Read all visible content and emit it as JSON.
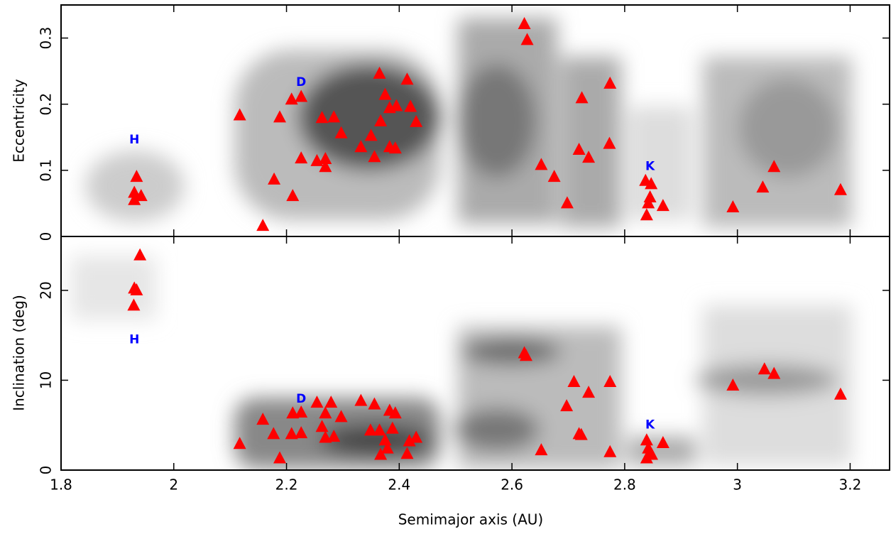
{
  "chart_data": [
    {
      "type": "scatter",
      "y_label": "Eccentricity",
      "xlim": [
        1.8,
        3.27
      ],
      "ylim": [
        0,
        0.35
      ],
      "xticks": [
        1.8,
        2,
        2.2,
        2.4,
        2.6,
        2.8,
        3,
        3.2
      ],
      "yticks": [
        0,
        0.1,
        0.2,
        0.3
      ],
      "series": [
        {
          "color": "#ff0000",
          "x": [
            1.934,
            1.93,
            1.942,
            1.93,
            2.117,
            2.158,
            2.178,
            2.188,
            2.211,
            2.209,
            2.226,
            2.226,
            2.254,
            2.263,
            2.269,
            2.269,
            2.284,
            2.297,
            2.332,
            2.35,
            2.356,
            2.365,
            2.367,
            2.375,
            2.383,
            2.383,
            2.393,
            2.395,
            2.414,
            2.42,
            2.43,
            2.622,
            2.627,
            2.652,
            2.724,
            2.719,
            2.736,
            2.774,
            2.773,
            2.675,
            2.698,
            2.837,
            2.847,
            2.845,
            2.842,
            2.868,
            2.839,
            2.992,
            3.045,
            3.065,
            3.183
          ],
          "values": [
            0.09,
            0.066,
            0.061,
            0.055,
            0.183,
            0.016,
            0.086,
            0.18,
            0.061,
            0.207,
            0.211,
            0.118,
            0.114,
            0.179,
            0.117,
            0.105,
            0.18,
            0.156,
            0.135,
            0.152,
            0.12,
            0.246,
            0.174,
            0.214,
            0.135,
            0.194,
            0.133,
            0.197,
            0.237,
            0.196,
            0.173,
            0.321,
            0.297,
            0.108,
            0.209,
            0.131,
            0.119,
            0.231,
            0.14,
            0.09,
            0.05,
            0.084,
            0.079,
            0.059,
            0.05,
            0.046,
            0.032,
            0.044,
            0.074,
            0.105,
            0.07
          ]
        }
      ],
      "annotations": [
        {
          "text": "H",
          "x": 1.93,
          "y": 0.146
        },
        {
          "text": "D",
          "x": 2.226,
          "y": 0.233
        },
        {
          "text": "K",
          "x": 2.845,
          "y": 0.106
        }
      ]
    },
    {
      "type": "scatter",
      "x_label": "Semimajor axis (AU)",
      "y_label": "Inclination (deg)",
      "xlim": [
        1.8,
        3.27
      ],
      "ylim": [
        0,
        26
      ],
      "xticks": [
        1.8,
        2,
        2.2,
        2.4,
        2.6,
        2.8,
        3,
        3.2
      ],
      "yticks": [
        0,
        10,
        20
      ],
      "series": [
        {
          "color": "#ff0000",
          "x": [
            1.94,
            1.93,
            1.934,
            1.929,
            2.117,
            2.158,
            2.177,
            2.188,
            2.211,
            2.209,
            2.226,
            2.226,
            2.254,
            2.263,
            2.269,
            2.269,
            2.279,
            2.284,
            2.297,
            2.332,
            2.349,
            2.356,
            2.365,
            2.367,
            2.375,
            2.379,
            2.383,
            2.388,
            2.393,
            2.414,
            2.418,
            2.43,
            2.622,
            2.625,
            2.652,
            2.71,
            2.697,
            2.719,
            2.723,
            2.736,
            2.774,
            2.774,
            2.839,
            2.842,
            2.845,
            2.839,
            2.848,
            2.868,
            2.992,
            3.048,
            3.065,
            3.183
          ],
          "values": [
            23.9,
            20.2,
            20.0,
            18.3,
            2.9,
            5.6,
            4.0,
            1.3,
            6.3,
            4.0,
            6.4,
            4.1,
            7.5,
            4.8,
            6.3,
            3.6,
            7.5,
            3.7,
            5.9,
            7.7,
            4.4,
            7.3,
            4.4,
            1.7,
            3.3,
            2.4,
            6.6,
            4.6,
            6.3,
            1.8,
            3.2,
            3.6,
            13.0,
            12.7,
            2.2,
            9.8,
            7.1,
            4.0,
            3.9,
            8.6,
            9.8,
            2.0,
            3.3,
            2.4,
            1.7,
            1.3,
            1.7,
            3.0,
            9.4,
            11.2,
            10.7,
            8.4
          ]
        }
      ],
      "annotations": [
        {
          "text": "H",
          "x": 1.93,
          "y": 14.5
        },
        {
          "text": "D",
          "x": 2.226,
          "y": 7.9
        },
        {
          "text": "K",
          "x": 2.845,
          "y": 5.0
        }
      ]
    }
  ]
}
